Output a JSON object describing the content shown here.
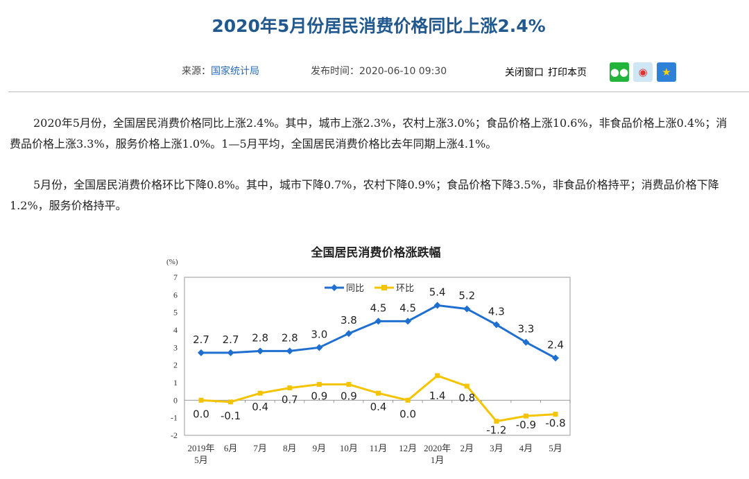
{
  "header": {
    "title": "2020年5月份居民消费价格同比上涨2.4%",
    "source_label": "来源：",
    "source": "国家统计局",
    "pubtime": "发布时间：2020-06-10 09:30",
    "close_label": "关闭窗口",
    "print_label": "打印本页",
    "share": [
      {
        "icon": "wechat-icon",
        "color": "#22b33a"
      },
      {
        "icon": "weibo-icon",
        "color": "#cfe7f5"
      },
      {
        "icon": "qzone-icon",
        "color": "#2d82d8"
      }
    ]
  },
  "body": {
    "paragraphs": [
      "2020年5月份，全国居民消费价格同比上涨2.4%。其中，城市上涨2.3%，农村上涨3.0%；食品价格上涨10.6%，非食品价格上涨0.4%；消费品价格上涨3.3%，服务价格上涨1.0%。1—5月平均，全国居民消费价格比去年同期上涨4.1%。",
      "5月份，全国居民消费价格环比下降0.8%。其中，城市下降0.7%，农村下降0.9%；食品价格下降3.5%，非食品价格持平；消费品价格下降1.2%，服务价格持平。"
    ]
  },
  "chart_data": {
    "type": "line",
    "title": "全国居民消费价格涨跌幅",
    "ylabel": "(%)",
    "ylim": [
      -2,
      7
    ],
    "yticks": [
      "7",
      "6",
      "5",
      "4",
      "3",
      "2",
      "1",
      "0",
      "-1",
      "-2"
    ],
    "categories": [
      [
        "2019年",
        "5月"
      ],
      [
        "6月"
      ],
      [
        "7月"
      ],
      [
        "8月"
      ],
      [
        "9月"
      ],
      [
        "10月"
      ],
      [
        "11月"
      ],
      [
        "12月"
      ],
      [
        "2020年",
        "1月"
      ],
      [
        "2月"
      ],
      [
        "3月"
      ],
      [
        "4月"
      ],
      [
        "5月"
      ]
    ],
    "legend": "top-center",
    "series": [
      {
        "name": "同比",
        "color": "#1f6fd0",
        "marker": "diamond",
        "values": [
          2.7,
          2.7,
          2.8,
          2.8,
          3.0,
          3.8,
          4.5,
          4.5,
          5.4,
          5.2,
          4.3,
          3.3,
          2.4
        ]
      },
      {
        "name": "环比",
        "color": "#f5c400",
        "marker": "square",
        "values": [
          0.0,
          -0.1,
          0.4,
          0.7,
          0.9,
          0.9,
          0.4,
          0.0,
          1.4,
          0.8,
          -1.2,
          -0.9,
          -0.8
        ]
      }
    ]
  }
}
